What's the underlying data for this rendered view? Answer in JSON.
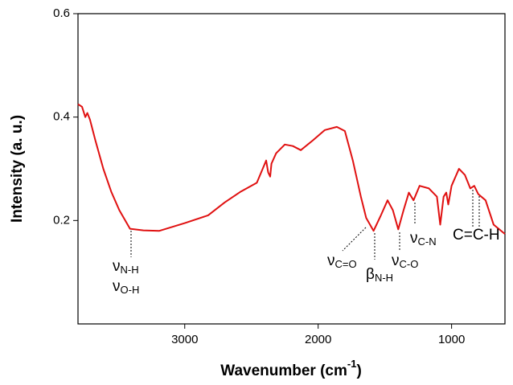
{
  "chart_data": {
    "type": "line",
    "ylabel": "Intensity (a. u.)",
    "xlabel": {
      "text": "Wavenumber (cm",
      "sup": "-1",
      "tail": ")"
    },
    "xlim": [
      3800,
      600
    ],
    "xticks": [
      3000,
      2000,
      1000
    ],
    "ylim": [
      0,
      0.6
    ],
    "yticks": [
      0.2,
      0.4,
      0.6
    ],
    "series": [
      {
        "color": "#e01010",
        "x": [
          3800,
          3770,
          3745,
          3730,
          3710,
          3670,
          3610,
          3550,
          3490,
          3410,
          3310,
          3190,
          3000,
          2825,
          2700,
          2585,
          2460,
          2390,
          2375,
          2360,
          2350,
          2315,
          2250,
          2190,
          2130,
          2040,
          1950,
          1860,
          1800,
          1740,
          1680,
          1640,
          1585,
          1530,
          1480,
          1440,
          1400,
          1360,
          1320,
          1285,
          1240,
          1170,
          1110,
          1085,
          1060,
          1040,
          1025,
          1000,
          945,
          900,
          860,
          830,
          800,
          745,
          685,
          600
        ],
        "values": [
          0.425,
          0.42,
          0.4,
          0.408,
          0.395,
          0.355,
          0.3,
          0.255,
          0.22,
          0.184,
          0.181,
          0.18,
          0.195,
          0.21,
          0.235,
          0.255,
          0.273,
          0.316,
          0.293,
          0.285,
          0.31,
          0.33,
          0.347,
          0.344,
          0.336,
          0.355,
          0.375,
          0.381,
          0.373,
          0.316,
          0.246,
          0.205,
          0.18,
          0.21,
          0.239,
          0.22,
          0.183,
          0.22,
          0.254,
          0.239,
          0.267,
          0.262,
          0.246,
          0.192,
          0.246,
          0.254,
          0.231,
          0.267,
          0.3,
          0.288,
          0.262,
          0.267,
          0.251,
          0.239,
          0.192,
          0.174
        ]
      }
    ],
    "annotations": [
      {
        "text": "ν",
        "sub": "N-H"
      },
      {
        "text": "ν",
        "sub": "O-H"
      },
      {
        "text": "ν",
        "sub": "C=O"
      },
      {
        "text": "β",
        "sub": "N-H"
      },
      {
        "text": "ν",
        "sub": "C-O"
      },
      {
        "text": "ν",
        "sub": "C-N"
      },
      {
        "text": "C=C-H"
      }
    ]
  }
}
